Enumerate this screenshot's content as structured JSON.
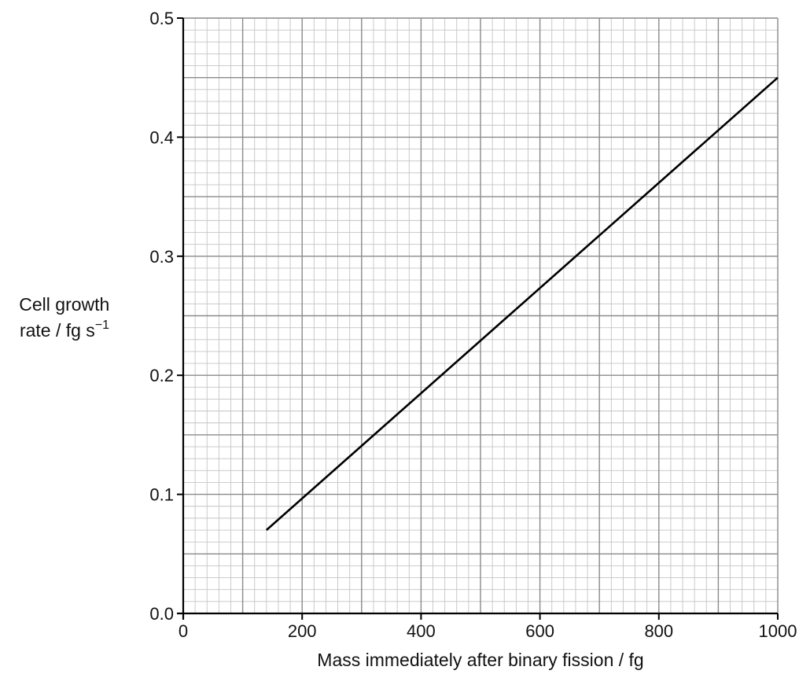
{
  "chart_data": {
    "type": "line",
    "title": "",
    "xlabel": "Mass immediately after binary fission / fg",
    "ylabel_line1": "Cell growth",
    "ylabel_line2_prefix": "rate / fg s",
    "ylabel_line2_exponent": "−1",
    "xlim": [
      0,
      1000
    ],
    "ylim": [
      0,
      0.5
    ],
    "x_major_step": 100,
    "x_minor_step": 20,
    "y_major_step": 0.05,
    "y_minor_step": 0.01,
    "x_tick_labels": [
      {
        "value": 0,
        "label": "0"
      },
      {
        "value": 200,
        "label": "200"
      },
      {
        "value": 400,
        "label": "400"
      },
      {
        "value": 600,
        "label": "600"
      },
      {
        "value": 800,
        "label": "800"
      },
      {
        "value": 1000,
        "label": "1000"
      }
    ],
    "y_tick_labels": [
      {
        "value": 0,
        "label": "0.0"
      },
      {
        "value": 0.1,
        "label": "0.1"
      },
      {
        "value": 0.2,
        "label": "0.2"
      },
      {
        "value": 0.3,
        "label": "0.3"
      },
      {
        "value": 0.4,
        "label": "0.4"
      },
      {
        "value": 0.5,
        "label": "0.5"
      }
    ],
    "grid": true,
    "series": [
      {
        "x": [
          140,
          1000
        ],
        "y": [
          0.07,
          0.45
        ],
        "color": "#000000"
      }
    ]
  }
}
